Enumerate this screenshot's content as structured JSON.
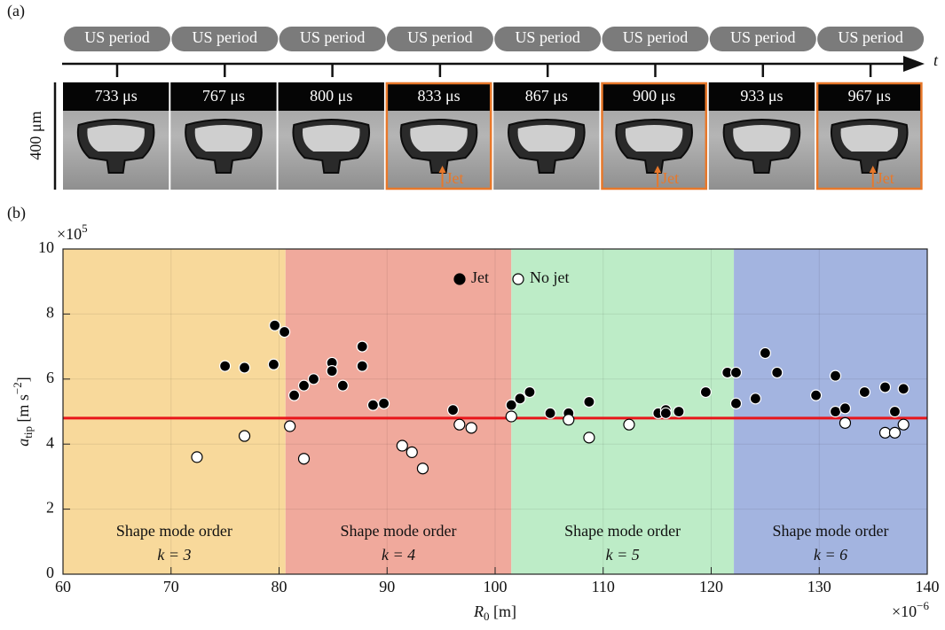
{
  "panel_a": {
    "label": "(a)",
    "periods": [
      "US period",
      "US period",
      "US period",
      "US period",
      "US period",
      "US period",
      "US period",
      "US period"
    ],
    "time_axis": "t",
    "frames": [
      {
        "time": "733 μs"
      },
      {
        "time": "767 μs"
      },
      {
        "time": "800 μs"
      },
      {
        "time": "833 μs",
        "jet": "Jet"
      },
      {
        "time": "867 μs"
      },
      {
        "time": "900 μs",
        "jet": "Jet"
      },
      {
        "time": "933 μs"
      },
      {
        "time": "967 μs",
        "jet": "Jet"
      }
    ],
    "scale_bar": "400 μm"
  },
  "chart_data": {
    "type": "scatter",
    "panel_label": "(b)",
    "xlabel": {
      "symbol": "R",
      "subscript": "0",
      "unit": " [m]"
    },
    "ylabel": {
      "symbol": "a",
      "subscript": "tip",
      "unit": " [m s",
      "power": "−2",
      "close": "]"
    },
    "x_multiplier": {
      "base": "×10",
      "power": "−6"
    },
    "y_multiplier": {
      "base": "×10",
      "power": "5"
    },
    "xlim": [
      60,
      140
    ],
    "ylim": [
      0,
      10
    ],
    "xticks": [
      60,
      70,
      80,
      90,
      100,
      110,
      120,
      130,
      140
    ],
    "yticks": [
      0,
      2,
      4,
      6,
      8,
      10
    ],
    "grid": true,
    "legend": "upper center",
    "regions": [
      {
        "xrange": [
          60,
          80.6
        ],
        "color": "#f8d99b",
        "label": "Shape mode order",
        "k": "k = 3"
      },
      {
        "xrange": [
          80.6,
          101.5
        ],
        "color": "#f0a99c",
        "label": "Shape mode order",
        "k": "k = 4"
      },
      {
        "xrange": [
          101.5,
          122.1
        ],
        "color": "#bdecc7",
        "label": "Shape mode order",
        "k": "k = 5"
      },
      {
        "xrange": [
          122.1,
          140
        ],
        "color": "#a3b4e0",
        "label": "Shape mode order",
        "k": "k = 6"
      }
    ],
    "hline": {
      "value": 4.8,
      "color": "#e8161b"
    },
    "series": [
      {
        "name": "Jet",
        "color": "#000000",
        "edgecolor": "#ffffff",
        "x": [
          79.6,
          80.5,
          75.0,
          76.8,
          79.5,
          81.4,
          82.3,
          83.2,
          84.9,
          84.9,
          85.9,
          87.7,
          87.7,
          88.7,
          89.7,
          96.1,
          101.5,
          102.3,
          103.2,
          105.1,
          106.8,
          108.7,
          115.1,
          115.8,
          115.8,
          117.0,
          119.5,
          121.5,
          122.3,
          122.3,
          124.1,
          125.0,
          126.1,
          129.7,
          131.5,
          131.5,
          132.4,
          134.2,
          136.1,
          137.0,
          137.8
        ],
        "y": [
          7.65,
          7.45,
          6.4,
          6.35,
          6.45,
          5.5,
          5.8,
          6.0,
          6.5,
          6.25,
          5.8,
          7.0,
          6.4,
          5.2,
          5.25,
          5.05,
          5.2,
          5.4,
          5.6,
          4.95,
          4.95,
          5.3,
          4.95,
          5.05,
          4.95,
          5.0,
          5.6,
          6.2,
          6.2,
          5.25,
          5.4,
          6.8,
          6.2,
          5.5,
          6.1,
          5.0,
          5.1,
          5.6,
          5.75,
          5.0,
          5.7
        ]
      },
      {
        "name": "No jet",
        "color": "#ffffff",
        "edgecolor": "#000000",
        "x": [
          72.4,
          76.8,
          81.0,
          82.3,
          91.4,
          92.3,
          93.3,
          96.7,
          97.8,
          101.5,
          106.8,
          108.7,
          112.4,
          132.4,
          136.1,
          137.0,
          137.8
        ],
        "y": [
          3.6,
          4.25,
          4.55,
          3.55,
          3.95,
          3.75,
          3.25,
          4.6,
          4.5,
          4.85,
          4.75,
          4.2,
          4.6,
          4.65,
          4.35,
          4.35,
          4.6
        ]
      }
    ]
  }
}
